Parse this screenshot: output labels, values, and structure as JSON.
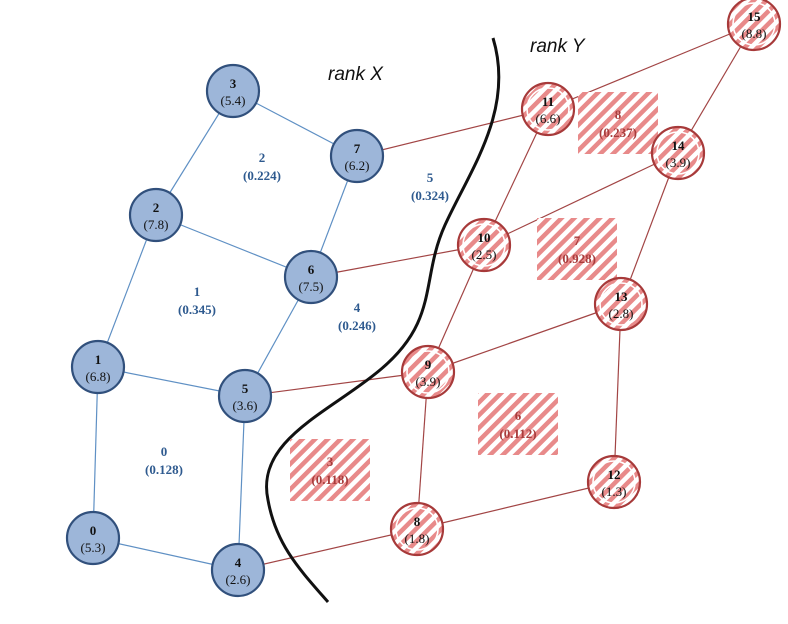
{
  "colors": {
    "blue_fill": "#9db6d9",
    "blue_stroke": "#31507c",
    "blue_edge": "#5f90c4",
    "blue_text": "#2e5a8f",
    "red_stroke": "#a73a3a",
    "red_edge": "#a24545",
    "red_hatch": "#e88a8a",
    "red_text": "#a83c3c",
    "boundary": "#111111"
  },
  "rank_labels": {
    "left": "rank X",
    "right": "rank Y"
  },
  "nodes": [
    {
      "id": "0",
      "value": "(5.3)",
      "rank": "X"
    },
    {
      "id": "1",
      "value": "(6.8)",
      "rank": "X"
    },
    {
      "id": "2",
      "value": "(7.8)",
      "rank": "X"
    },
    {
      "id": "3",
      "value": "(5.4)",
      "rank": "X"
    },
    {
      "id": "4",
      "value": "(2.6)",
      "rank": "X"
    },
    {
      "id": "5",
      "value": "(3.6)",
      "rank": "X"
    },
    {
      "id": "6",
      "value": "(7.5)",
      "rank": "X"
    },
    {
      "id": "7",
      "value": "(6.2)",
      "rank": "X"
    },
    {
      "id": "8",
      "value": "(1.8)",
      "rank": "Y"
    },
    {
      "id": "9",
      "value": "(3.9)",
      "rank": "Y"
    },
    {
      "id": "10",
      "value": "(2.5)",
      "rank": "Y"
    },
    {
      "id": "11",
      "value": "(6.6)",
      "rank": "Y"
    },
    {
      "id": "12",
      "value": "(1.3)",
      "rank": "Y"
    },
    {
      "id": "13",
      "value": "(2.8)",
      "rank": "Y"
    },
    {
      "id": "14",
      "value": "(3.9)",
      "rank": "Y"
    },
    {
      "id": "15",
      "value": "(8.8)",
      "rank": "Y"
    }
  ],
  "edges": [
    [
      "0",
      "1"
    ],
    [
      "0",
      "4"
    ],
    [
      "1",
      "2"
    ],
    [
      "1",
      "5"
    ],
    [
      "2",
      "3"
    ],
    [
      "2",
      "6"
    ],
    [
      "3",
      "7"
    ],
    [
      "4",
      "5"
    ],
    [
      "5",
      "6"
    ],
    [
      "6",
      "7"
    ],
    [
      "7",
      "11"
    ],
    [
      "6",
      "10"
    ],
    [
      "5",
      "9"
    ],
    [
      "4",
      "8"
    ],
    [
      "8",
      "9"
    ],
    [
      "8",
      "12"
    ],
    [
      "9",
      "10"
    ],
    [
      "9",
      "13"
    ],
    [
      "10",
      "11"
    ],
    [
      "10",
      "14"
    ],
    [
      "11",
      "15"
    ],
    [
      "12",
      "13"
    ],
    [
      "13",
      "14"
    ],
    [
      "14",
      "15"
    ]
  ],
  "faces": [
    {
      "id": "0",
      "value": "(0.128)",
      "rank": "X"
    },
    {
      "id": "1",
      "value": "(0.345)",
      "rank": "X"
    },
    {
      "id": "2",
      "value": "(0.224)",
      "rank": "X"
    },
    {
      "id": "4",
      "value": "(0.246)",
      "rank": "X"
    },
    {
      "id": "5",
      "value": "(0.324)",
      "rank": "X"
    },
    {
      "id": "3",
      "value": "(0.118)",
      "rank": "Y"
    },
    {
      "id": "6",
      "value": "(0.112)",
      "rank": "Y"
    },
    {
      "id": "7",
      "value": "(0.928)",
      "rank": "Y"
    },
    {
      "id": "8",
      "value": "(0.237)",
      "rank": "Y"
    }
  ]
}
